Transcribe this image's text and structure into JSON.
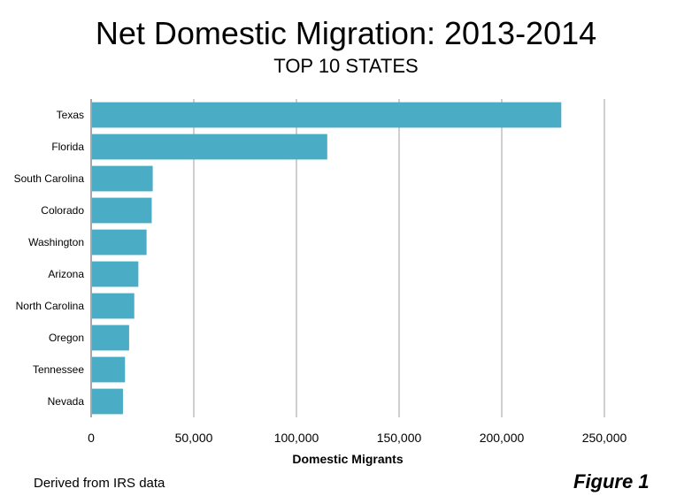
{
  "title": "Net Domestic Migration: 2013-2014",
  "subtitle": "TOP 10 STATES",
  "note": "Derived from IRS  data",
  "figure_label": "Figure 1",
  "chart_data": {
    "type": "bar",
    "orientation": "horizontal",
    "title": "Net Domestic Migration: 2013-2014",
    "subtitle": "TOP 10 STATES",
    "xlabel": "Domestic Migrants",
    "ylabel": "",
    "categories": [
      "Texas",
      "Florida",
      "South Carolina",
      "Colorado",
      "Washington",
      "Arizona",
      "North Carolina",
      "Oregon",
      "Tennessee",
      "Nevada"
    ],
    "values": [
      229000,
      115000,
      30000,
      29500,
      27000,
      23000,
      21000,
      18500,
      16500,
      15500
    ],
    "xlim": [
      0,
      250000
    ],
    "xticks": [
      0,
      50000,
      100000,
      150000,
      200000,
      250000
    ],
    "xtick_labels": [
      "0",
      "50,000",
      "100,000",
      "150,000",
      "200,000",
      "250,000"
    ],
    "grid": "vertical",
    "bar_color": "#4BACC6"
  }
}
